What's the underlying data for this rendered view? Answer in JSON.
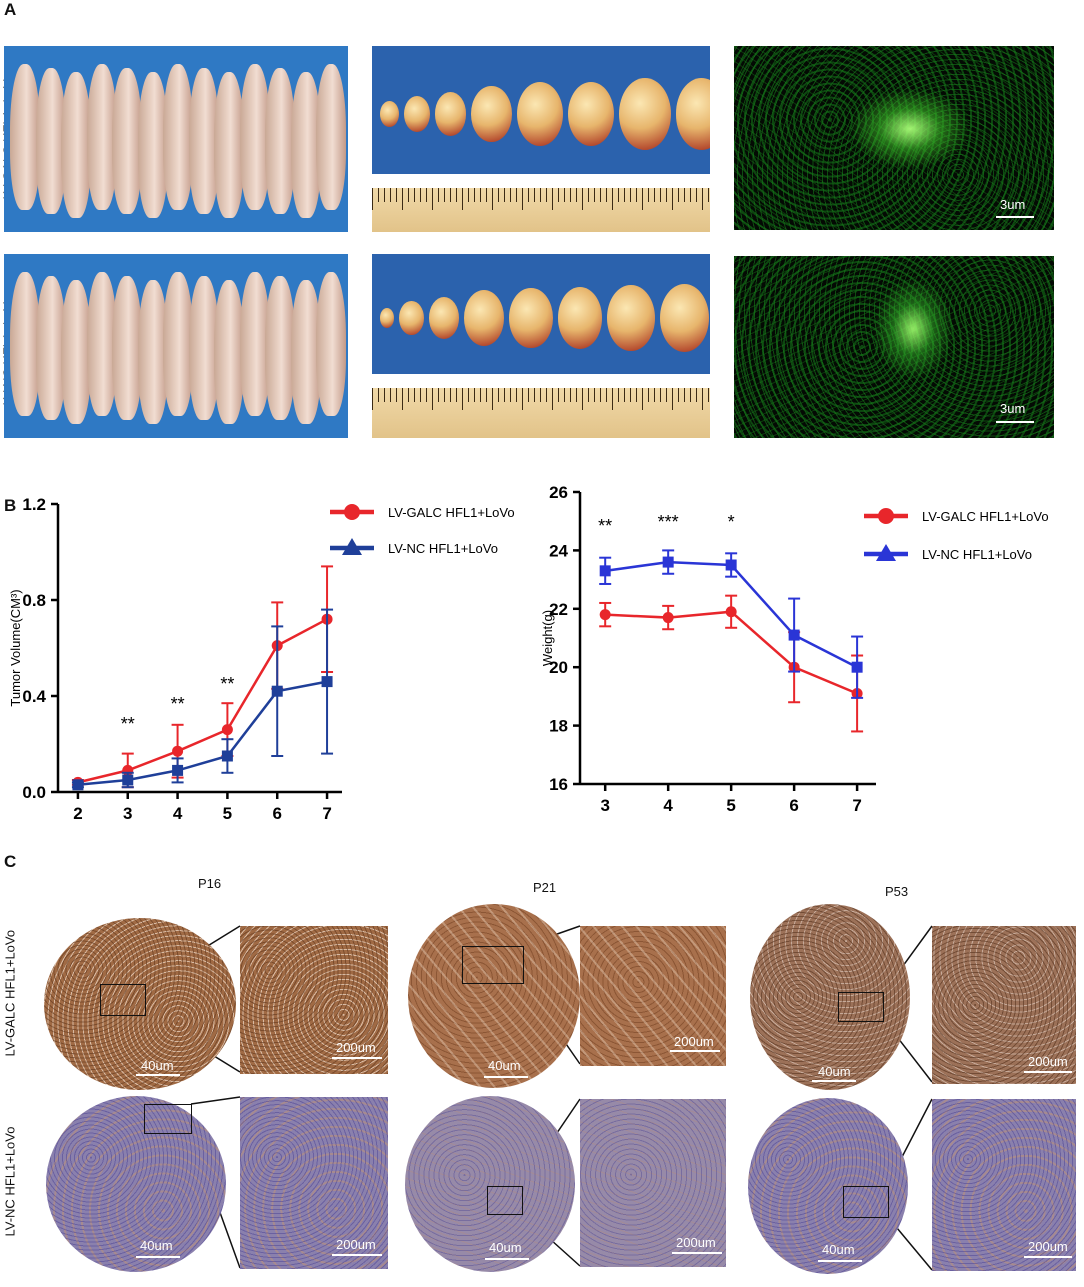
{
  "panel_a": {
    "letter": "A",
    "row_labels": [
      "LV-GALC HFL1+LoVo",
      "LV-NC HFL1+LoVo"
    ],
    "scale_bar": "3um"
  },
  "panel_b": {
    "letter": "B"
  },
  "panel_c": {
    "letter": "C",
    "columns": [
      "P16",
      "P21",
      "P53"
    ],
    "row_labels": [
      "LV-GALC HFL1+LoVo",
      "LV-NC HFL1+LoVo"
    ],
    "scale_overview": "40um",
    "scale_zoom": "200um"
  },
  "colors": {
    "red": "#e8262b",
    "blue_left": "#1f3f99",
    "blue_right": "#2a35d6"
  },
  "chart_data": [
    {
      "type": "line",
      "ylabel": "Tumor Volume(CM³)",
      "xlabel": "",
      "categories": [
        2,
        3,
        4,
        5,
        6,
        7
      ],
      "xlim": [
        1.6,
        7.3
      ],
      "ylim": [
        0.0,
        1.2
      ],
      "yticks": [
        "0.0",
        "0.4",
        "0.8",
        "1.2"
      ],
      "xticks": [
        "2",
        "3",
        "4",
        "5",
        "6",
        "7"
      ],
      "series": [
        {
          "name": "LV-GALC HFL1+LoVo",
          "marker": "circle",
          "color": "#e8262b",
          "x": [
            2,
            3,
            4,
            5,
            6,
            7
          ],
          "values": [
            0.04,
            0.09,
            0.17,
            0.26,
            0.61,
            0.72
          ],
          "err": [
            0.01,
            0.07,
            0.11,
            0.11,
            0.18,
            0.22
          ]
        },
        {
          "name": "LV-NC HFL1+LoVo",
          "marker": "square",
          "legend_marker": "triangle",
          "color": "#1f3f99",
          "x": [
            2,
            3,
            4,
            5,
            6,
            7
          ],
          "values": [
            0.03,
            0.05,
            0.09,
            0.15,
            0.42,
            0.46
          ],
          "err": [
            0.01,
            0.03,
            0.05,
            0.07,
            0.27,
            0.3
          ]
        }
      ],
      "annotations": [
        {
          "x": 3,
          "text": "**"
        },
        {
          "x": 4,
          "text": "**"
        },
        {
          "x": 5,
          "text": "**"
        }
      ],
      "legend_position": "top-right"
    },
    {
      "type": "line",
      "ylabel": "Weight(g)",
      "xlabel": "",
      "categories": [
        3,
        4,
        5,
        6,
        7
      ],
      "xlim": [
        2.6,
        7.3
      ],
      "ylim": [
        16,
        26
      ],
      "yticks": [
        "16",
        "18",
        "20",
        "22",
        "24",
        "26"
      ],
      "xticks": [
        "3",
        "4",
        "5",
        "6",
        "7"
      ],
      "series": [
        {
          "name": "LV-GALC HFL1+LoVo",
          "marker": "circle",
          "color": "#e8262b",
          "x": [
            3,
            4,
            5,
            6,
            7
          ],
          "values": [
            21.8,
            21.7,
            21.9,
            20.0,
            19.1
          ],
          "err": [
            0.4,
            0.4,
            0.55,
            1.2,
            1.3
          ]
        },
        {
          "name": "LV-NC HFL1+LoVo",
          "marker": "square",
          "legend_marker": "triangle",
          "color": "#2a35d6",
          "x": [
            3,
            4,
            5,
            6,
            7
          ],
          "values": [
            23.3,
            23.6,
            23.5,
            21.1,
            20.0
          ],
          "err": [
            0.45,
            0.4,
            0.4,
            1.25,
            1.05
          ]
        }
      ],
      "annotations": [
        {
          "x": 3,
          "text": "**"
        },
        {
          "x": 4,
          "text": "***"
        },
        {
          "x": 5,
          "text": "*"
        }
      ],
      "legend_position": "top-right"
    }
  ]
}
